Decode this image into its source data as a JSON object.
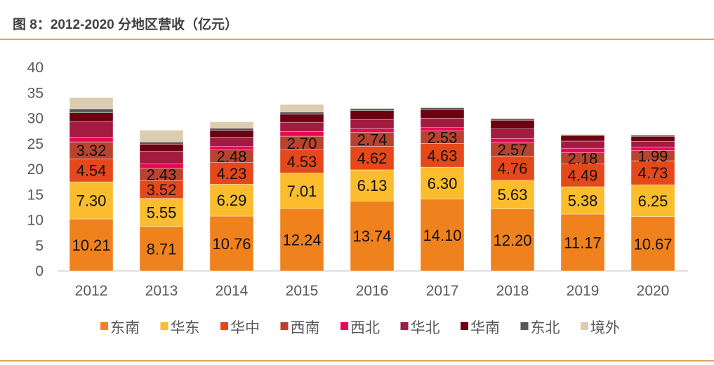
{
  "title": "图 8：2012-2020 分地区营收（亿元）",
  "chart_data": {
    "type": "bar",
    "stacked": true,
    "title": "图 8：2012-2020 分地区营收（亿元）",
    "xlabel": "",
    "ylabel": "",
    "ylim": [
      0,
      40
    ],
    "yticks": [
      0,
      5,
      10,
      15,
      20,
      25,
      30,
      35,
      40
    ],
    "grid": false,
    "legend": "bottom",
    "categories": [
      "2012",
      "2013",
      "2014",
      "2015",
      "2016",
      "2017",
      "2018",
      "2019",
      "2020"
    ],
    "series": [
      {
        "name": "东南",
        "color": "#F0821E",
        "labeled": true,
        "values": [
          10.21,
          8.71,
          10.76,
          12.24,
          13.74,
          14.1,
          12.2,
          11.17,
          10.67
        ]
      },
      {
        "name": "华东",
        "color": "#FBBC2E",
        "labeled": true,
        "values": [
          7.3,
          5.55,
          6.29,
          7.01,
          6.13,
          6.3,
          5.63,
          5.38,
          6.25
        ]
      },
      {
        "name": "华中",
        "color": "#E5481B",
        "labeled": true,
        "values": [
          4.54,
          3.52,
          4.23,
          4.53,
          4.62,
          4.63,
          4.76,
          4.49,
          4.73
        ]
      },
      {
        "name": "西南",
        "color": "#B8432E",
        "labeled": true,
        "values": [
          3.32,
          2.43,
          2.48,
          2.7,
          2.74,
          2.53,
          2.57,
          2.18,
          1.99
        ]
      },
      {
        "name": "西北",
        "color": "#EA0656",
        "labeled": false,
        "values": [
          0.9,
          0.8,
          0.75,
          0.9,
          0.7,
          0.6,
          0.85,
          0.9,
          0.65
        ]
      },
      {
        "name": "华北",
        "color": "#A31B40",
        "labeled": false,
        "values": [
          3.1,
          2.5,
          1.8,
          1.85,
          1.85,
          1.85,
          1.9,
          1.4,
          1.15
        ]
      },
      {
        "name": "华南",
        "color": "#6B0010",
        "labeled": false,
        "values": [
          1.7,
          1.4,
          1.3,
          1.6,
          1.7,
          1.7,
          1.7,
          1.05,
          1.0
        ]
      },
      {
        "name": "东北",
        "color": "#595959",
        "labeled": false,
        "values": [
          0.8,
          0.45,
          0.45,
          0.4,
          0.4,
          0.35,
          0.3,
          0.2,
          0.25
        ]
      },
      {
        "name": "境外",
        "color": "#DCCDB0",
        "labeled": false,
        "values": [
          2.2,
          2.3,
          1.25,
          1.5,
          0.15,
          0.2,
          0.1,
          0.1,
          0.1
        ]
      }
    ]
  }
}
